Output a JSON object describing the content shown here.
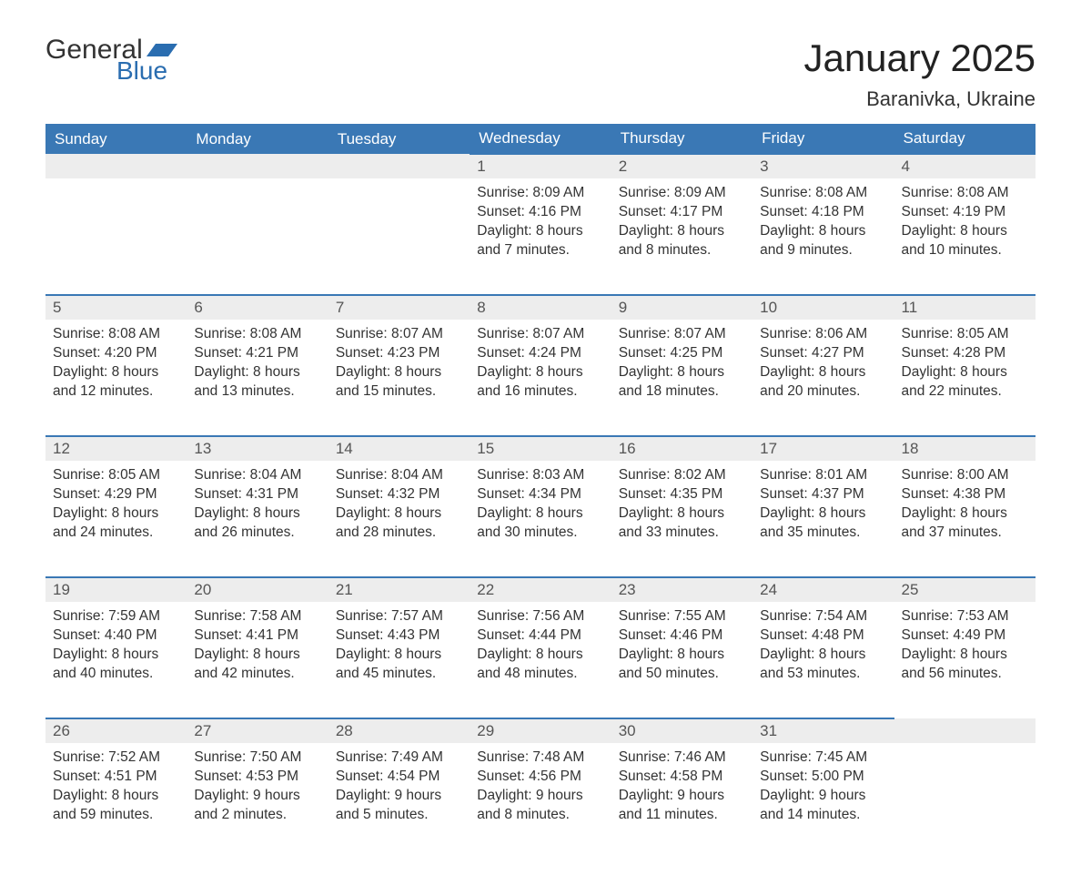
{
  "logo": {
    "word1": "General",
    "word2": "Blue"
  },
  "title": "January 2025",
  "location": "Baranivka, Ukraine",
  "colors": {
    "header_bg": "#3a78b5",
    "header_text": "#ffffff",
    "daynum_bg": "#ededed",
    "row_border": "#3a78b5",
    "text": "#333333",
    "logo_accent": "#2a6db0"
  },
  "fonts": {
    "title_size": 42,
    "location_size": 22,
    "th_size": 17,
    "cell_size": 15.5
  },
  "day_headers": [
    "Sunday",
    "Monday",
    "Tuesday",
    "Wednesday",
    "Thursday",
    "Friday",
    "Saturday"
  ],
  "weeks": [
    [
      null,
      null,
      null,
      {
        "n": "1",
        "sunrise": "8:09 AM",
        "sunset": "4:16 PM",
        "day_h": "8",
        "day_m": "7"
      },
      {
        "n": "2",
        "sunrise": "8:09 AM",
        "sunset": "4:17 PM",
        "day_h": "8",
        "day_m": "8"
      },
      {
        "n": "3",
        "sunrise": "8:08 AM",
        "sunset": "4:18 PM",
        "day_h": "8",
        "day_m": "9"
      },
      {
        "n": "4",
        "sunrise": "8:08 AM",
        "sunset": "4:19 PM",
        "day_h": "8",
        "day_m": "10"
      }
    ],
    [
      {
        "n": "5",
        "sunrise": "8:08 AM",
        "sunset": "4:20 PM",
        "day_h": "8",
        "day_m": "12"
      },
      {
        "n": "6",
        "sunrise": "8:08 AM",
        "sunset": "4:21 PM",
        "day_h": "8",
        "day_m": "13"
      },
      {
        "n": "7",
        "sunrise": "8:07 AM",
        "sunset": "4:23 PM",
        "day_h": "8",
        "day_m": "15"
      },
      {
        "n": "8",
        "sunrise": "8:07 AM",
        "sunset": "4:24 PM",
        "day_h": "8",
        "day_m": "16"
      },
      {
        "n": "9",
        "sunrise": "8:07 AM",
        "sunset": "4:25 PM",
        "day_h": "8",
        "day_m": "18"
      },
      {
        "n": "10",
        "sunrise": "8:06 AM",
        "sunset": "4:27 PM",
        "day_h": "8",
        "day_m": "20"
      },
      {
        "n": "11",
        "sunrise": "8:05 AM",
        "sunset": "4:28 PM",
        "day_h": "8",
        "day_m": "22"
      }
    ],
    [
      {
        "n": "12",
        "sunrise": "8:05 AM",
        "sunset": "4:29 PM",
        "day_h": "8",
        "day_m": "24"
      },
      {
        "n": "13",
        "sunrise": "8:04 AM",
        "sunset": "4:31 PM",
        "day_h": "8",
        "day_m": "26"
      },
      {
        "n": "14",
        "sunrise": "8:04 AM",
        "sunset": "4:32 PM",
        "day_h": "8",
        "day_m": "28"
      },
      {
        "n": "15",
        "sunrise": "8:03 AM",
        "sunset": "4:34 PM",
        "day_h": "8",
        "day_m": "30"
      },
      {
        "n": "16",
        "sunrise": "8:02 AM",
        "sunset": "4:35 PM",
        "day_h": "8",
        "day_m": "33"
      },
      {
        "n": "17",
        "sunrise": "8:01 AM",
        "sunset": "4:37 PM",
        "day_h": "8",
        "day_m": "35"
      },
      {
        "n": "18",
        "sunrise": "8:00 AM",
        "sunset": "4:38 PM",
        "day_h": "8",
        "day_m": "37"
      }
    ],
    [
      {
        "n": "19",
        "sunrise": "7:59 AM",
        "sunset": "4:40 PM",
        "day_h": "8",
        "day_m": "40"
      },
      {
        "n": "20",
        "sunrise": "7:58 AM",
        "sunset": "4:41 PM",
        "day_h": "8",
        "day_m": "42"
      },
      {
        "n": "21",
        "sunrise": "7:57 AM",
        "sunset": "4:43 PM",
        "day_h": "8",
        "day_m": "45"
      },
      {
        "n": "22",
        "sunrise": "7:56 AM",
        "sunset": "4:44 PM",
        "day_h": "8",
        "day_m": "48"
      },
      {
        "n": "23",
        "sunrise": "7:55 AM",
        "sunset": "4:46 PM",
        "day_h": "8",
        "day_m": "50"
      },
      {
        "n": "24",
        "sunrise": "7:54 AM",
        "sunset": "4:48 PM",
        "day_h": "8",
        "day_m": "53"
      },
      {
        "n": "25",
        "sunrise": "7:53 AM",
        "sunset": "4:49 PM",
        "day_h": "8",
        "day_m": "56"
      }
    ],
    [
      {
        "n": "26",
        "sunrise": "7:52 AM",
        "sunset": "4:51 PM",
        "day_h": "8",
        "day_m": "59"
      },
      {
        "n": "27",
        "sunrise": "7:50 AM",
        "sunset": "4:53 PM",
        "day_h": "9",
        "day_m": "2"
      },
      {
        "n": "28",
        "sunrise": "7:49 AM",
        "sunset": "4:54 PM",
        "day_h": "9",
        "day_m": "5"
      },
      {
        "n": "29",
        "sunrise": "7:48 AM",
        "sunset": "4:56 PM",
        "day_h": "9",
        "day_m": "8"
      },
      {
        "n": "30",
        "sunrise": "7:46 AM",
        "sunset": "4:58 PM",
        "day_h": "9",
        "day_m": "11"
      },
      {
        "n": "31",
        "sunrise": "7:45 AM",
        "sunset": "5:00 PM",
        "day_h": "9",
        "day_m": "14"
      },
      null
    ]
  ],
  "labels": {
    "sunrise_prefix": "Sunrise: ",
    "sunset_prefix": "Sunset: ",
    "daylight_prefix": "Daylight: ",
    "hours_word": " hours",
    "and_word": "and ",
    "minutes_word": " minutes."
  }
}
